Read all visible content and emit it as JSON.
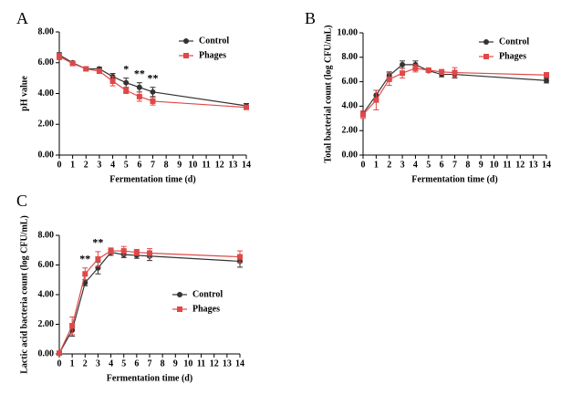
{
  "chart_data": [
    {
      "type": "line",
      "label": "A",
      "ylabel": "pH value",
      "xlabel": "Fermentation time (d)",
      "x": [
        0,
        1,
        2,
        3,
        4,
        5,
        6,
        7,
        14
      ],
      "xlim": [
        0,
        14
      ],
      "xticks": [
        0,
        1,
        2,
        3,
        4,
        5,
        6,
        7,
        8,
        9,
        10,
        11,
        12,
        13,
        14
      ],
      "ylim": [
        0,
        8
      ],
      "yticks": [
        {
          "value": 0,
          "label": "0.00"
        },
        {
          "value": 2,
          "label": "2.00"
        },
        {
          "value": 4,
          "label": "4.00"
        },
        {
          "value": 6,
          "label": "6.00"
        },
        {
          "value": 8,
          "label": "8.00"
        }
      ],
      "legend": "top right",
      "series": [
        {
          "name": "Control",
          "color": "#333333",
          "marker": "circle",
          "values": [
            6.5,
            6.0,
            5.6,
            5.6,
            5.1,
            4.7,
            4.4,
            4.1,
            3.2
          ],
          "errors": [
            0.15,
            0.1,
            0.1,
            0.1,
            0.2,
            0.3,
            0.3,
            0.3,
            0.15
          ]
        },
        {
          "name": "Phages",
          "color": "#e04848",
          "marker": "square",
          "values": [
            6.4,
            5.95,
            5.6,
            5.45,
            4.8,
            4.2,
            3.8,
            3.5,
            3.1
          ],
          "errors": [
            0.2,
            0.1,
            0.1,
            0.15,
            0.3,
            0.2,
            0.3,
            0.25,
            0.1
          ]
        }
      ],
      "annotations": [
        {
          "text": "*",
          "x": 5
        },
        {
          "text": "**",
          "x": 6
        },
        {
          "text": "**",
          "x": 7
        }
      ]
    },
    {
      "type": "line",
      "label": "B",
      "ylabel": "Total bacterial count (log CFU/mL)",
      "xlabel": "Fermentation time (d)",
      "x": [
        0,
        1,
        2,
        3,
        4,
        5,
        6,
        7,
        14
      ],
      "xlim": [
        0,
        14
      ],
      "xticks": [
        0,
        1,
        2,
        3,
        4,
        5,
        6,
        7,
        8,
        9,
        10,
        11,
        12,
        13,
        14
      ],
      "ylim": [
        0,
        10
      ],
      "yticks": [
        {
          "value": 0,
          "label": "0.00"
        },
        {
          "value": 2,
          "label": "2.00"
        },
        {
          "value": 4,
          "label": "4.00"
        },
        {
          "value": 6,
          "label": "6.00"
        },
        {
          "value": 8,
          "label": "8.00"
        },
        {
          "value": 10,
          "label": "10.00"
        }
      ],
      "legend": "top right",
      "series": [
        {
          "name": "Control",
          "color": "#333333",
          "marker": "circle",
          "values": [
            3.4,
            4.9,
            6.5,
            7.4,
            7.4,
            6.9,
            6.6,
            6.6,
            6.1
          ],
          "errors": [
            0.2,
            0.4,
            0.3,
            0.3,
            0.3,
            0.1,
            0.2,
            0.3,
            0.2
          ]
        },
        {
          "name": "Phages",
          "color": "#e04848",
          "marker": "square",
          "values": [
            3.3,
            4.5,
            6.2,
            6.7,
            7.1,
            6.95,
            6.8,
            6.75,
            6.55
          ],
          "errors": [
            0.3,
            0.8,
            0.5,
            0.4,
            0.3,
            0.1,
            0.2,
            0.4,
            0.2
          ]
        }
      ],
      "annotations": []
    },
    {
      "type": "line",
      "label": "C",
      "ylabel": "Lactic acid bacteria count (log CFU/mL)",
      "xlabel": "Fermentation time (d)",
      "x": [
        0,
        1,
        2,
        3,
        4,
        5,
        6,
        7,
        14
      ],
      "xlim": [
        0,
        14
      ],
      "xticks": [
        0,
        1,
        2,
        3,
        4,
        5,
        6,
        7,
        8,
        9,
        10,
        11,
        12,
        13,
        14
      ],
      "ylim": [
        0,
        8
      ],
      "yticks": [
        {
          "value": 0,
          "label": "0.00"
        },
        {
          "value": 2,
          "label": "2.00"
        },
        {
          "value": 4,
          "label": "4.00"
        },
        {
          "value": 6,
          "label": "6.00"
        },
        {
          "value": 8,
          "label": "8.00"
        }
      ],
      "legend": "center right",
      "series": [
        {
          "name": "Control",
          "color": "#333333",
          "marker": "circle",
          "values": [
            0.05,
            1.6,
            4.8,
            5.8,
            6.85,
            6.7,
            6.65,
            6.6,
            6.25
          ],
          "errors": [
            0.05,
            0.4,
            0.2,
            0.4,
            0.2,
            0.2,
            0.2,
            0.3,
            0.4
          ]
        },
        {
          "name": "Phages",
          "color": "#e04848",
          "marker": "square",
          "values": [
            0.05,
            1.9,
            5.4,
            6.4,
            6.95,
            6.95,
            6.85,
            6.8,
            6.55
          ],
          "errors": [
            0.05,
            0.6,
            0.4,
            0.5,
            0.2,
            0.3,
            0.2,
            0.3,
            0.4
          ]
        }
      ],
      "annotations": [
        {
          "text": "**",
          "x": 2
        },
        {
          "text": "**",
          "x": 3
        }
      ]
    }
  ]
}
